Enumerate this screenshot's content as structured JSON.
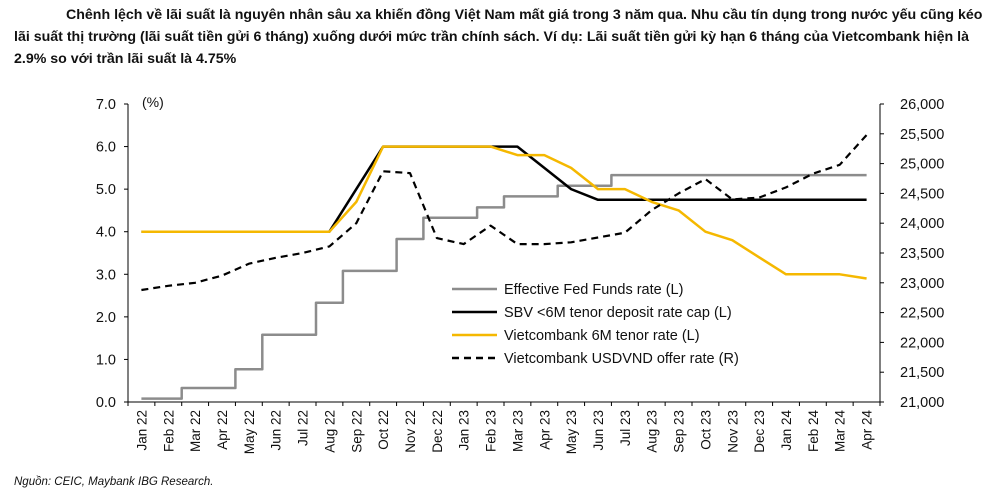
{
  "caption": {
    "line1": "Chênh lệch về lãi suất là nguyên nhân sâu xa khiến đồng Việt Nam mất giá trong 3 năm qua. Nhu cầu tín dụng trong nước yếu cũng kéo",
    "line2": "lãi suất thị trường (lãi suất tiền gửi 6 tháng) xuống dưới mức trần chính sách. Ví dụ: Lãi suất tiền gửi kỳ hạn 6 tháng của Vietcombank hiện là",
    "line3": "2.9% so với trần lãi suất là 4.75%"
  },
  "source": "Nguồn: CEIC, Maybank IBG Research.",
  "chart_data": {
    "type": "line",
    "left_axis": {
      "unit": "(%)",
      "ylim": [
        0,
        7
      ],
      "ticks": [
        "0.0",
        "1.0",
        "2.0",
        "3.0",
        "4.0",
        "5.0",
        "6.0",
        "7.0"
      ]
    },
    "right_axis": {
      "ylim": [
        21000,
        26000
      ],
      "ticks": [
        "21,000",
        "21,500",
        "22,000",
        "22,500",
        "23,000",
        "23,500",
        "24,000",
        "24,500",
        "25,000",
        "25,500",
        "26,000"
      ]
    },
    "categories": [
      "Jan 22",
      "Feb 22",
      "Mar 22",
      "Apr 22",
      "May 22",
      "Jun 22",
      "Jul 22",
      "Aug 22",
      "Sep 22",
      "Oct 22",
      "Nov 22",
      "Dec 22",
      "Jan 23",
      "Feb 23",
      "Mar 23",
      "Apr 23",
      "May 23",
      "Jun 23",
      "Jul 23",
      "Aug 23",
      "Sep 23",
      "Oct 23",
      "Nov 23",
      "Dec 23",
      "Jan 24",
      "Feb 24",
      "Mar 24",
      "Apr 24"
    ],
    "legend_position": "lower-right",
    "series": [
      {
        "name": "Effective Fed Funds rate (L)",
        "axis": "left",
        "color": "#8c8c8c",
        "style": "solid",
        "step": true,
        "values": [
          0.08,
          0.08,
          0.33,
          0.33,
          0.77,
          1.58,
          1.58,
          2.33,
          3.08,
          3.08,
          3.83,
          4.33,
          4.33,
          4.57,
          4.83,
          4.83,
          5.08,
          5.08,
          5.33,
          5.33,
          5.33,
          5.33,
          5.33,
          5.33,
          5.33,
          5.33,
          5.33,
          5.33
        ]
      },
      {
        "name": "SBV <6M tenor deposit rate cap (L)",
        "axis": "left",
        "color": "#000000",
        "style": "solid",
        "step": false,
        "values": [
          4.0,
          4.0,
          4.0,
          4.0,
          4.0,
          4.0,
          4.0,
          4.0,
          5.0,
          6.0,
          6.0,
          6.0,
          6.0,
          6.0,
          6.0,
          5.5,
          5.0,
          4.75,
          4.75,
          4.75,
          4.75,
          4.75,
          4.75,
          4.75,
          4.75,
          4.75,
          4.75,
          4.75
        ]
      },
      {
        "name": "Vietcombank 6M tenor rate (L)",
        "axis": "left",
        "color": "#f5b800",
        "style": "solid",
        "step": false,
        "values": [
          4.0,
          4.0,
          4.0,
          4.0,
          4.0,
          4.0,
          4.0,
          4.0,
          4.7,
          6.0,
          6.0,
          6.0,
          6.0,
          6.0,
          5.8,
          5.8,
          5.5,
          5.0,
          5.0,
          4.7,
          4.5,
          4.0,
          3.8,
          3.4,
          3.0,
          3.0,
          3.0,
          2.9
        ]
      },
      {
        "name": "Vietcombank USDVND offer rate (R)",
        "axis": "right",
        "color": "#000000",
        "style": "dashed",
        "step": false,
        "values": [
          22880,
          22950,
          23000,
          23120,
          23320,
          23420,
          23500,
          23610,
          24000,
          24870,
          24840,
          23750,
          23650,
          23960,
          23650,
          23650,
          23680,
          23760,
          23840,
          24220,
          24500,
          24740,
          24400,
          24430,
          24600,
          24830,
          24980,
          25480
        ]
      }
    ]
  }
}
